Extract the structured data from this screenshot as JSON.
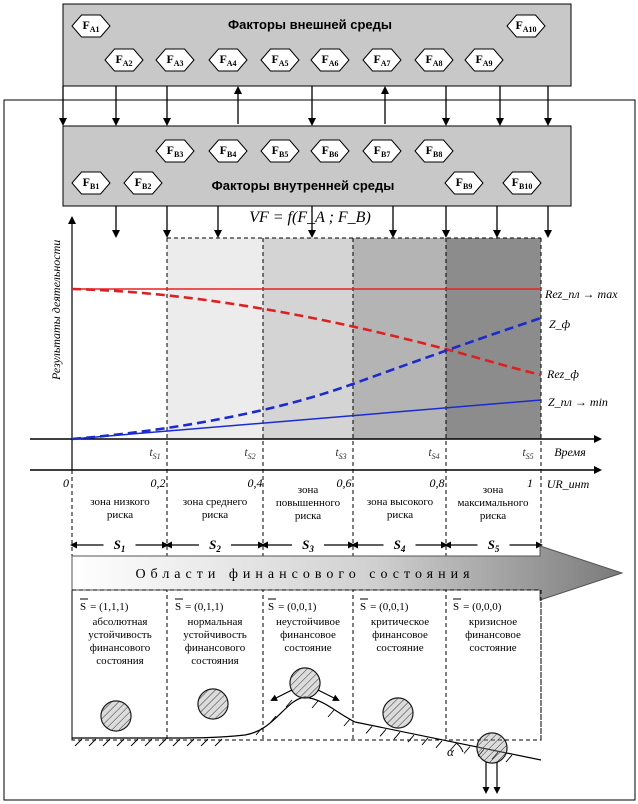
{
  "external": {
    "title": "Факторы внешней среды",
    "row1": [
      "F_A1",
      "F_A10"
    ],
    "row2": [
      "F_A2",
      "F_A3",
      "F_A4",
      "F_A5",
      "F_A6",
      "F_A7",
      "F_A8",
      "F_A9"
    ]
  },
  "internal": {
    "title": "Факторы внутренней среды",
    "row1": [
      "F_B3",
      "F_B4",
      "F_B5",
      "F_B6",
      "F_B7",
      "F_B8"
    ],
    "row2": [
      "F_B1",
      "F_B2",
      "F_B9",
      "F_B10"
    ]
  },
  "formula": "VF = f(F_A ; F_B)",
  "y_axis_label": "Результаты деятельности",
  "time_label": "Время",
  "ur_label": "UR_инт",
  "ticks_t": [
    "t_S1",
    "t_S2",
    "t_S3",
    "t_S4",
    "t_S5"
  ],
  "ticks_ur": [
    "0",
    "0,2",
    "0,4",
    "0,6",
    "0,8",
    "1"
  ],
  "curves": {
    "rez_pl": "Rez_пл → max",
    "z_f": "Z_ф",
    "rez_f": "Rez_ф",
    "z_pl": "Z_пл → min"
  },
  "zones": [
    "зона низкого риска",
    "зона среднего риска",
    "зона повышенного риска",
    "зона высокого риска",
    "зона максимального риска"
  ],
  "states": [
    "S_1",
    "S_2",
    "S_3",
    "S_4",
    "S_5"
  ],
  "areas_title": "Области финансового состояния",
  "state_vectors": [
    "= (1,1,1)",
    "= (0,1,1)",
    "= (0,0,1)",
    "= (0,0,1)",
    "= (0,0,0)"
  ],
  "state_desc": [
    "абсолютная устойчивость финансового состояния",
    "нормальная устойчивость финансового состояния",
    "неустойчивое финансовое состояние",
    "критическое финансовое состояние",
    "кризисное финансовое состояние"
  ],
  "alpha": "α",
  "colors": {
    "box_fill": "#c8c8c8",
    "rez_pl": "#e82020",
    "rez_f": "#e02020",
    "z_pl": "#1a2bd0",
    "z_f": "#1a2bd0",
    "zone_fills": [
      "#ffffff",
      "#ececec",
      "#d6d6d6",
      "#b4b4b4",
      "#8c8c8c"
    ]
  }
}
